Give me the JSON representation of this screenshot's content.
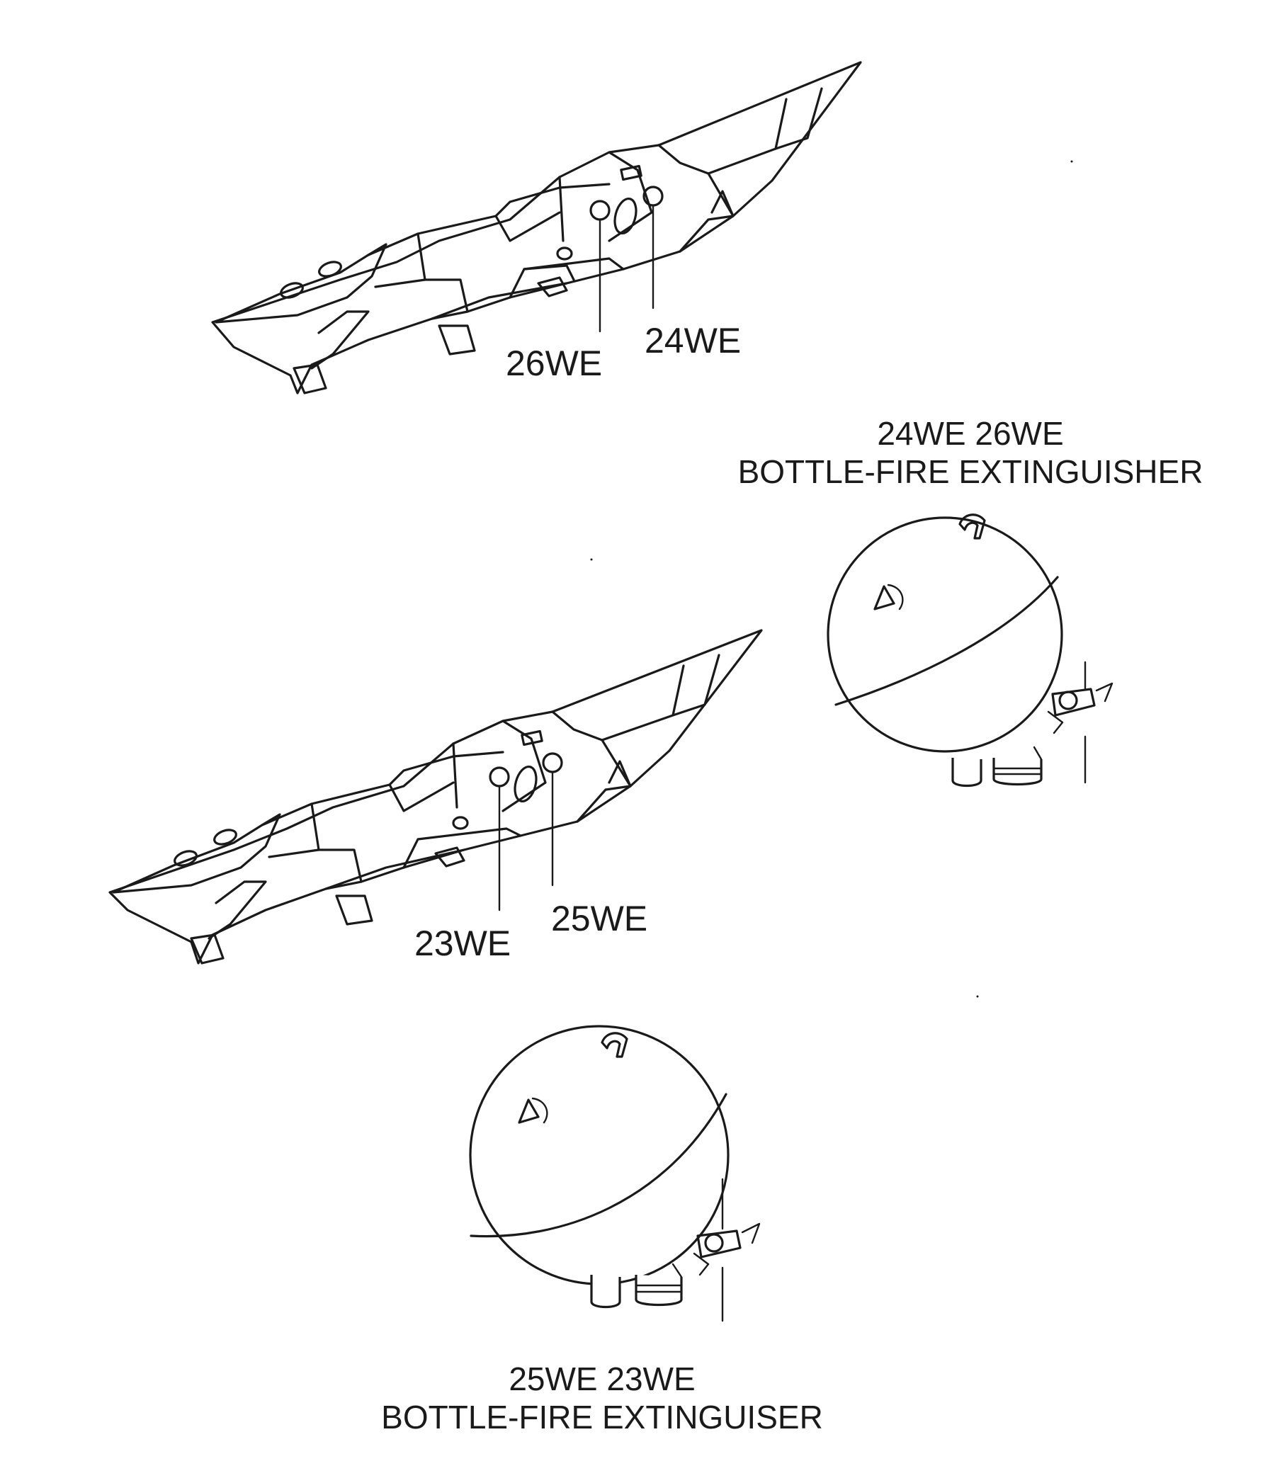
{
  "callouts": {
    "top_left": "26WE",
    "top_right": "24WE",
    "mid_left": "23WE",
    "mid_right": "25WE"
  },
  "captions": {
    "upper": {
      "line1": "24WE 26WE",
      "line2": "BOTTLE-FIRE EXTINGUISHER"
    },
    "lower": {
      "line1": "25WE 23WE",
      "line2": "BOTTLE-FIRE EXTINGUISER"
    }
  },
  "colors": {
    "ink": "#1a1a1a",
    "background": "#ffffff"
  }
}
